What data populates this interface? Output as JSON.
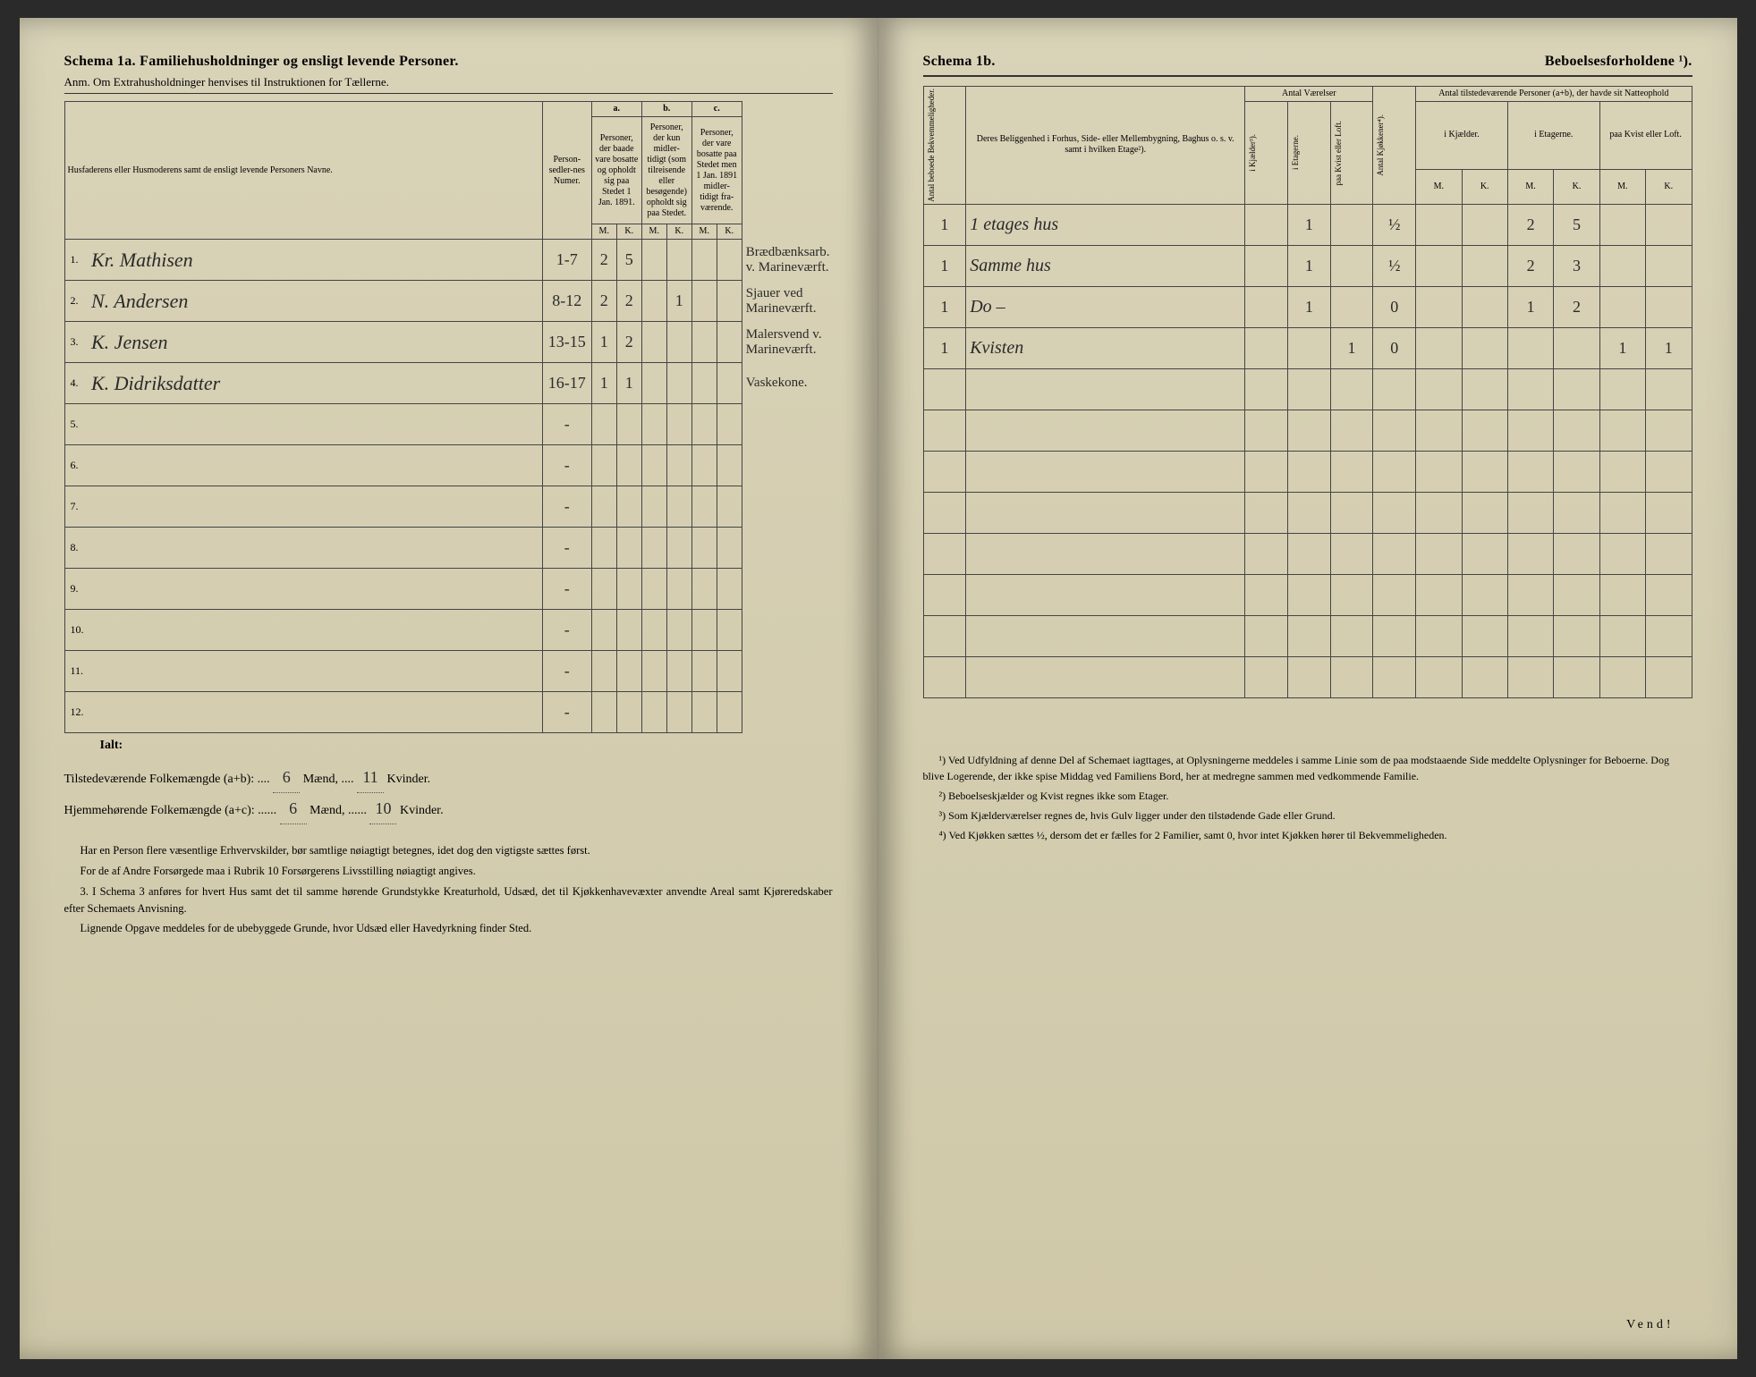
{
  "left": {
    "title": "Schema 1a.  Familiehusholdninger og ensligt levende Personer.",
    "subtitle": "Anm.  Om Extrahusholdninger henvises til Instruktionen for Tællerne.",
    "headers": {
      "names": "Husfaderens eller Husmoderens samt de ensligt levende Personers Navne.",
      "numer": "Person-sedler-nes Numer.",
      "a_label": "a.",
      "a_text": "Personer, der baade vare bosatte og opholdt sig paa Stedet 1 Jan. 1891.",
      "b_label": "b.",
      "b_text": "Personer, der kun midler-tidigt (som tilreisende eller besøgende) opholdt sig paa Stedet.",
      "c_label": "c.",
      "c_text": "Personer, der vare bosatte paa Stedet men 1 Jan. 1891 midler-tidigt fra-værende.",
      "M": "M.",
      "K": "K."
    },
    "rows": [
      {
        "n": "1.",
        "name": "Kr. Mathisen",
        "numer": "1-7",
        "aM": "2",
        "aK": "5",
        "bM": "",
        "bK": "",
        "cM": "",
        "cK": "",
        "note": "Brædbænksarb. v. Marineværft."
      },
      {
        "n": "2.",
        "name": "N. Andersen",
        "numer": "8-12",
        "aM": "2",
        "aK": "2",
        "bM": "",
        "bK": "1",
        "cM": "",
        "cK": "",
        "note": "Sjauer ved Marineværft."
      },
      {
        "n": "3.",
        "name": "K. Jensen",
        "numer": "13-15",
        "aM": "1",
        "aK": "2",
        "bM": "",
        "bK": "",
        "cM": "",
        "cK": "",
        "note": "Malersvend v. Marineværft."
      },
      {
        "n": "4.",
        "name": "K. Didriksdatter",
        "numer": "16-17",
        "aM": "1",
        "aK": "1",
        "bM": "",
        "bK": "",
        "cM": "",
        "cK": "",
        "note": "Vaskekone."
      },
      {
        "n": "5.",
        "name": "",
        "numer": "-",
        "aM": "",
        "aK": "",
        "bM": "",
        "bK": "",
        "cM": "",
        "cK": "",
        "note": ""
      },
      {
        "n": "6.",
        "name": "",
        "numer": "-",
        "aM": "",
        "aK": "",
        "bM": "",
        "bK": "",
        "cM": "",
        "cK": "",
        "note": ""
      },
      {
        "n": "7.",
        "name": "",
        "numer": "-",
        "aM": "",
        "aK": "",
        "bM": "",
        "bK": "",
        "cM": "",
        "cK": "",
        "note": ""
      },
      {
        "n": "8.",
        "name": "",
        "numer": "-",
        "aM": "",
        "aK": "",
        "bM": "",
        "bK": "",
        "cM": "",
        "cK": "",
        "note": ""
      },
      {
        "n": "9.",
        "name": "",
        "numer": "-",
        "aM": "",
        "aK": "",
        "bM": "",
        "bK": "",
        "cM": "",
        "cK": "",
        "note": ""
      },
      {
        "n": "10.",
        "name": "",
        "numer": "-",
        "aM": "",
        "aK": "",
        "bM": "",
        "bK": "",
        "cM": "",
        "cK": "",
        "note": ""
      },
      {
        "n": "11.",
        "name": "",
        "numer": "-",
        "aM": "",
        "aK": "",
        "bM": "",
        "bK": "",
        "cM": "",
        "cK": "",
        "note": ""
      },
      {
        "n": "12.",
        "name": "",
        "numer": "-",
        "aM": "",
        "aK": "",
        "bM": "",
        "bK": "",
        "cM": "",
        "cK": "",
        "note": ""
      }
    ],
    "ialt": "Ialt:",
    "totals1_label": "Tilstedeværende Folkemængde (a+b): ....",
    "totals1_m": "6",
    "totals1_mid": " Mænd, ....",
    "totals1_k": "11",
    "totals1_end": " Kvinder.",
    "totals2_label": "Hjemmehørende Folkemængde (a+c): ......",
    "totals2_m": "6",
    "totals2_mid": " Mænd, ......",
    "totals2_k": "10",
    "totals2_end": " Kvinder.",
    "para1": "Har en Person flere væsentlige Erhvervskilder, bør samtlige nøiagtigt betegnes, idet dog den vigtigste sættes først.",
    "para2": "For de af Andre Forsørgede maa i Rubrik 10 Forsørgerens Livsstilling nøiagtigt angives.",
    "para3": "3. I Schema 3 anføres for hvert Hus samt det til samme hørende Grundstykke Kreaturhold, Udsæd, det til Kjøkkenhavevæxter anvendte Areal samt Kjøreredskaber efter Schemaets Anvisning.",
    "para4": "Lignende Opgave meddeles for de ubebyggede Grunde, hvor Udsæd eller Havedyrkning finder Sted."
  },
  "right": {
    "title_left": "Schema 1b.",
    "title_right": "Beboelsesforholdene ¹).",
    "headers": {
      "antal_beb": "Antal beboede Bekvemmeligheder.",
      "beligg": "Deres Beliggenhed i Forhus, Side- eller Mellembygning, Baghus o. s. v. samt i hvilken Etage²).",
      "antal_vaer": "Antal Værelser",
      "kjaelder": "i Kjælder³).",
      "etagerne": "i Etagerne.",
      "kvist": "paa Kvist eller Loft.",
      "kjokken": "Antal Kjøkkener⁴).",
      "tilstede": "Antal tilstedeværende Personer (a+b), der havde sit Natteophold",
      "ikjael": "i Kjælder.",
      "ietag": "i Etagerne.",
      "paakvist": "paa Kvist eller Loft.",
      "M": "M.",
      "K": "K."
    },
    "rows": [
      {
        "ab": "1",
        "bel": "1 etages hus",
        "kj": "",
        "et": "1",
        "kv": "",
        "kk": "½",
        "kjM": "",
        "kjK": "",
        "etM": "2",
        "etK": "5",
        "kvM": "",
        "kvK": ""
      },
      {
        "ab": "1",
        "bel": "Samme hus",
        "kj": "",
        "et": "1",
        "kv": "",
        "kk": "½",
        "kjM": "",
        "kjK": "",
        "etM": "2",
        "etK": "3",
        "kvM": "",
        "kvK": ""
      },
      {
        "ab": "1",
        "bel": "Do –",
        "kj": "",
        "et": "1",
        "kv": "",
        "kk": "0",
        "kjM": "",
        "kjK": "",
        "etM": "1",
        "etK": "2",
        "kvM": "",
        "kvK": ""
      },
      {
        "ab": "1",
        "bel": "Kvisten",
        "kj": "",
        "et": "",
        "kv": "1",
        "kk": "0",
        "kjM": "",
        "kjK": "",
        "etM": "",
        "etK": "",
        "kvM": "1",
        "kvK": "1"
      },
      {
        "ab": "",
        "bel": "",
        "kj": "",
        "et": "",
        "kv": "",
        "kk": "",
        "kjM": "",
        "kjK": "",
        "etM": "",
        "etK": "",
        "kvM": "",
        "kvK": ""
      },
      {
        "ab": "",
        "bel": "",
        "kj": "",
        "et": "",
        "kv": "",
        "kk": "",
        "kjM": "",
        "kjK": "",
        "etM": "",
        "etK": "",
        "kvM": "",
        "kvK": ""
      },
      {
        "ab": "",
        "bel": "",
        "kj": "",
        "et": "",
        "kv": "",
        "kk": "",
        "kjM": "",
        "kjK": "",
        "etM": "",
        "etK": "",
        "kvM": "",
        "kvK": ""
      },
      {
        "ab": "",
        "bel": "",
        "kj": "",
        "et": "",
        "kv": "",
        "kk": "",
        "kjM": "",
        "kjK": "",
        "etM": "",
        "etK": "",
        "kvM": "",
        "kvK": ""
      },
      {
        "ab": "",
        "bel": "",
        "kj": "",
        "et": "",
        "kv": "",
        "kk": "",
        "kjM": "",
        "kjK": "",
        "etM": "",
        "etK": "",
        "kvM": "",
        "kvK": ""
      },
      {
        "ab": "",
        "bel": "",
        "kj": "",
        "et": "",
        "kv": "",
        "kk": "",
        "kjM": "",
        "kjK": "",
        "etM": "",
        "etK": "",
        "kvM": "",
        "kvK": ""
      },
      {
        "ab": "",
        "bel": "",
        "kj": "",
        "et": "",
        "kv": "",
        "kk": "",
        "kjM": "",
        "kjK": "",
        "etM": "",
        "etK": "",
        "kvM": "",
        "kvK": ""
      },
      {
        "ab": "",
        "bel": "",
        "kj": "",
        "et": "",
        "kv": "",
        "kk": "",
        "kjM": "",
        "kjK": "",
        "etM": "",
        "etK": "",
        "kvM": "",
        "kvK": ""
      }
    ],
    "fn1": "¹) Ved Udfyldning af denne Del af Schemaet iagttages, at Oplysningerne meddeles i samme Linie som de paa modstaaende Side meddelte Oplysninger for Beboerne. Dog blive Logerende, der ikke spise Middag ved Familiens Bord, her at medregne sammen med vedkommende Familie.",
    "fn2": "²) Beboelseskjælder og Kvist regnes ikke som Etager.",
    "fn3": "³) Som Kjælderværelser regnes de, hvis Gulv ligger under den tilstødende Gade eller Grund.",
    "fn4": "⁴) Ved Kjøkken sættes ½, dersom det er fælles for 2 Familier, samt 0, hvor intet Kjøkken hører til Bekvemmeligheden.",
    "vend": "Vend!"
  }
}
